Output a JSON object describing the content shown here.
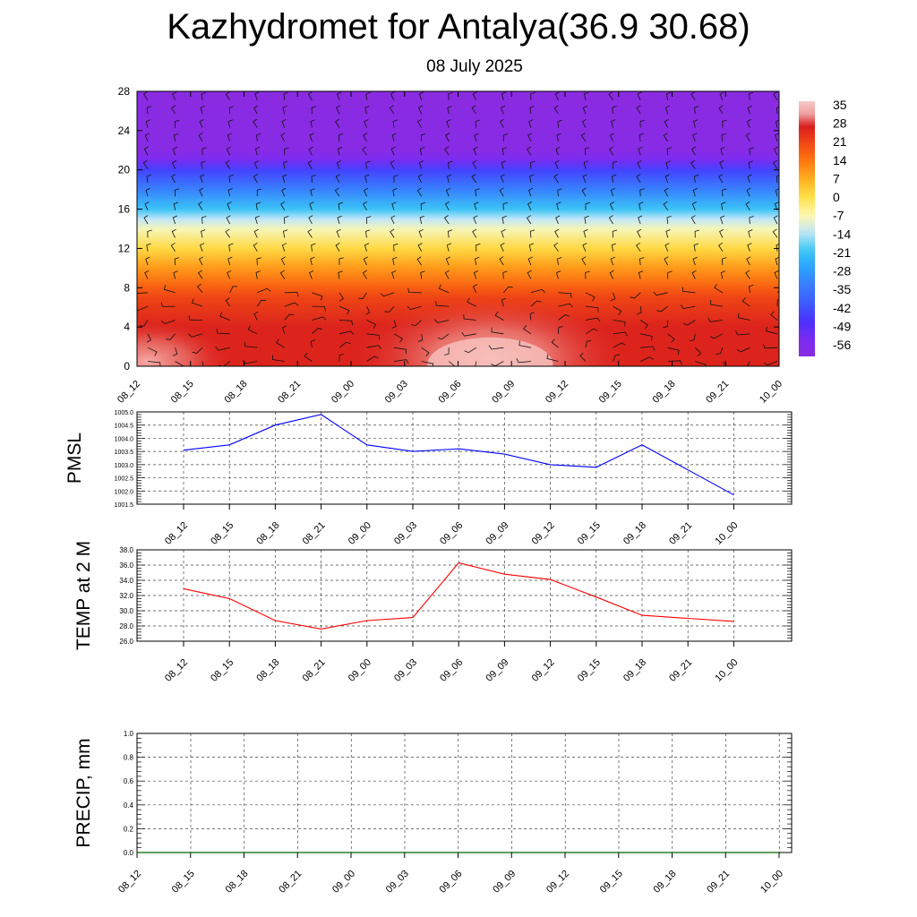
{
  "title": "Kazhydromet for Antalya(36.9 30.68)",
  "subtitle": "08 July 2025",
  "time_labels": [
    "08_12",
    "08_15",
    "08_18",
    "08_21",
    "09_00",
    "09_03",
    "09_06",
    "09_09",
    "09_12",
    "09_15",
    "09_18",
    "09_21",
    "10_00"
  ],
  "chart_data": [
    {
      "type": "heatmap",
      "name": "temperature-altitude cross section with wind barbs",
      "x": [
        "08_12",
        "08_15",
        "08_18",
        "08_21",
        "09_00",
        "09_03",
        "09_06",
        "09_09",
        "09_12",
        "09_15",
        "09_18",
        "09_21",
        "10_00"
      ],
      "ylim": [
        0,
        28
      ],
      "yticks": [
        0,
        4,
        8,
        12,
        16,
        20,
        24,
        28
      ],
      "colorbar": {
        "labels": [
          "35",
          "28",
          "21",
          "14",
          "7",
          "0",
          "-7",
          "-14",
          "-21",
          "-28",
          "-35",
          "-42",
          "-49",
          "-56"
        ],
        "range": [
          -63,
          38
        ]
      },
      "profile_by_level": [
        {
          "y": 0,
          "value": 33
        },
        {
          "y": 4,
          "value": 27
        },
        {
          "y": 7,
          "value": 22
        },
        {
          "y": 8,
          "value": 18
        },
        {
          "y": 10,
          "value": 10
        },
        {
          "y": 12,
          "value": 1
        },
        {
          "y": 14,
          "value": -8
        },
        {
          "y": 15,
          "value": -14
        },
        {
          "y": 16,
          "value": -22
        },
        {
          "y": 18,
          "value": -34
        },
        {
          "y": 20,
          "value": -46
        },
        {
          "y": 21,
          "value": -56
        },
        {
          "y": 22,
          "value": -62
        },
        {
          "y": 28,
          "value": -63
        }
      ]
    },
    {
      "type": "line",
      "ylabel": "PMSL",
      "x": [
        "08_12",
        "08_15",
        "08_18",
        "08_21",
        "09_00",
        "09_03",
        "09_06",
        "09_09",
        "09_12",
        "09_15",
        "09_18",
        "09_21",
        "10_00"
      ],
      "values": [
        1003.55,
        1003.75,
        1004.5,
        1004.9,
        1003.75,
        1003.5,
        1003.6,
        1003.4,
        1003.0,
        1002.9,
        1003.75,
        1002.8,
        1001.85
      ],
      "ylim": [
        1001.5,
        1005.0
      ],
      "yticks": [
        "1001.5",
        "1002.0",
        "1002.5",
        "1003.0",
        "1003.5",
        "1004.0",
        "1004.5",
        "1005.0"
      ],
      "color": "#0000ff"
    },
    {
      "type": "line",
      "ylabel": "TEMP at 2 M",
      "x": [
        "08_12",
        "08_15",
        "08_18",
        "08_21",
        "09_00",
        "09_03",
        "09_06",
        "09_09",
        "09_12",
        "09_15",
        "09_18",
        "09_21",
        "10_00"
      ],
      "values": [
        32.9,
        31.6,
        28.7,
        27.6,
        28.7,
        29.1,
        36.3,
        34.8,
        34.1,
        31.8,
        29.4,
        29.0,
        28.6
      ],
      "ylim": [
        26.0,
        38.0
      ],
      "yticks": [
        "26.0",
        "28.0",
        "30.0",
        "32.0",
        "34.0",
        "36.0",
        "38.0"
      ],
      "color": "#ff0000"
    },
    {
      "type": "line",
      "ylabel": "PRECIP, mm",
      "x": [
        "08_12",
        "08_15",
        "08_18",
        "08_21",
        "09_00",
        "09_03",
        "09_06",
        "09_09",
        "09_12",
        "09_15",
        "09_18",
        "09_21",
        "10_00"
      ],
      "values": [
        0,
        0,
        0,
        0,
        0,
        0,
        0,
        0,
        0,
        0,
        0,
        0,
        0
      ],
      "ylim": [
        0.0,
        1.0
      ],
      "yticks": [
        "0.0",
        "0.2",
        "0.4",
        "0.6",
        "0.8",
        "1.0"
      ],
      "color": "#006400"
    }
  ]
}
